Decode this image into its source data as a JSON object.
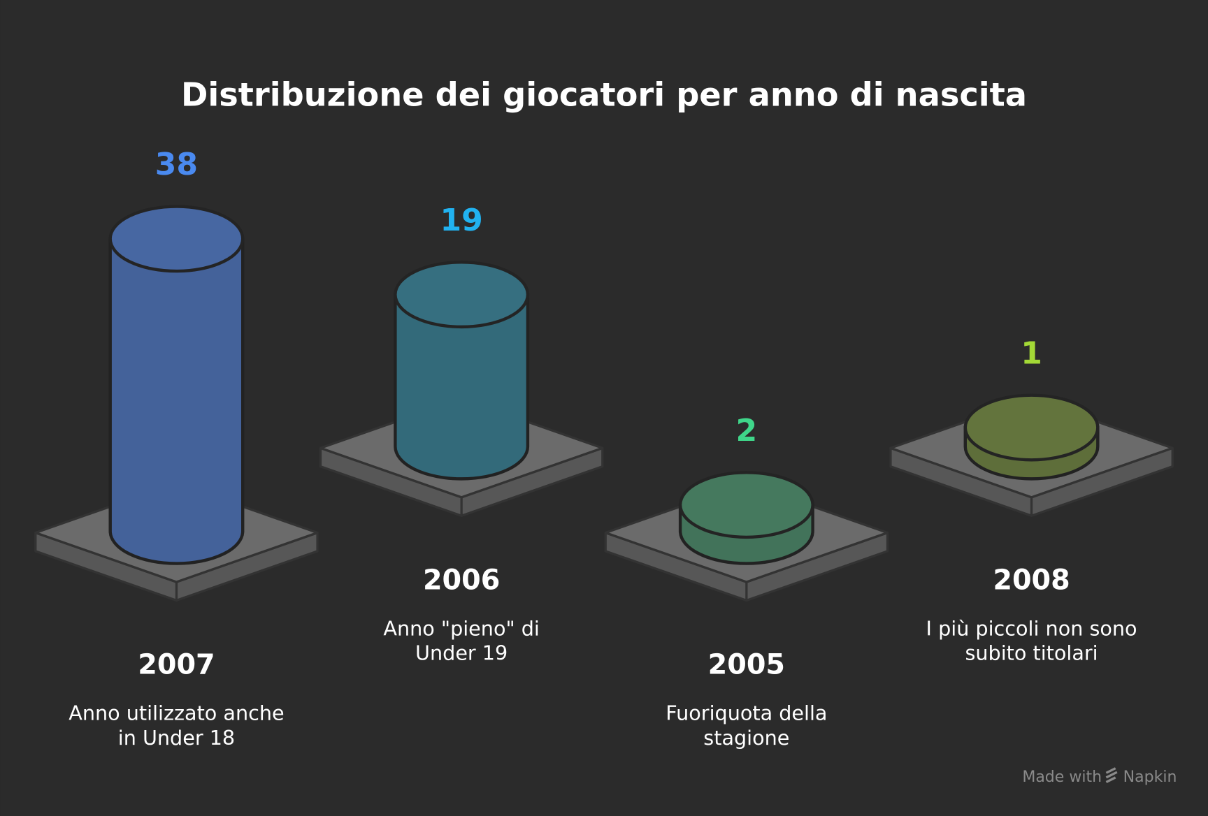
{
  "chart_data": {
    "type": "cylinder",
    "title": "Distribuzione dei giocatori per anno di nascita",
    "categories": [
      "2007",
      "2006",
      "2005",
      "2008"
    ],
    "values": [
      38,
      19,
      2,
      1
    ],
    "descriptions": [
      [
        "Anno utilizzato anche",
        "in Under 18"
      ],
      [
        "Anno \"pieno\" di",
        "Under 19"
      ],
      [
        "Fuoriquota della",
        "stagione"
      ],
      [
        "I più piccoli non sono",
        "subito titolari"
      ]
    ],
    "colors": [
      "#44629a",
      "#336a7a",
      "#42735a",
      "#5e6e3a"
    ],
    "label_colors": [
      "#4a8af0",
      "#21b2f0",
      "#3fd68a",
      "#a3d936"
    ],
    "footer": [
      "Made with",
      "Napkin"
    ]
  }
}
